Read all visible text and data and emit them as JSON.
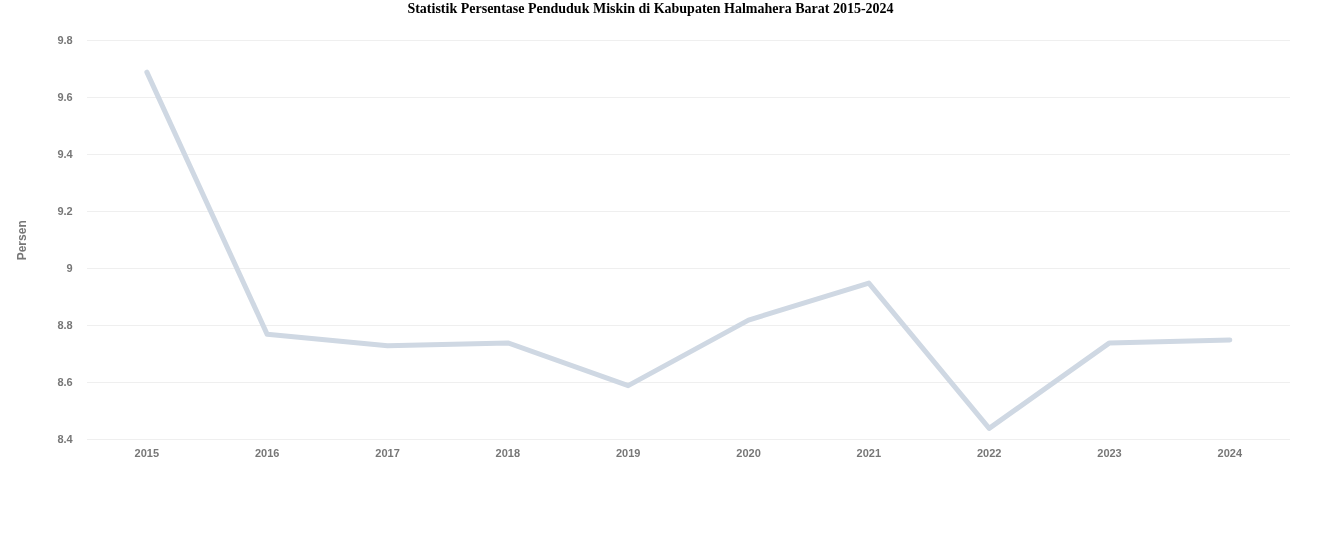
{
  "chart_data": {
    "type": "line",
    "title": "Statistik Persentase Penduduk Miskin di Kabupaten Halmahera Barat 2015-2024",
    "ylabel": "Persen",
    "categories": [
      "2015",
      "2016",
      "2017",
      "2018",
      "2019",
      "2020",
      "2021",
      "2022",
      "2023",
      "2024"
    ],
    "values": [
      9.69,
      8.77,
      8.73,
      8.74,
      8.59,
      8.82,
      8.95,
      8.44,
      8.74,
      8.75
    ],
    "color": "#cfd8e3",
    "ylim": [
      8.4,
      9.8
    ],
    "yticks": [
      8.4,
      8.6,
      8.8,
      9,
      9.2,
      9.4,
      9.6,
      9.8
    ],
    "grid": "y",
    "marker": "none",
    "line_style": "solid"
  }
}
